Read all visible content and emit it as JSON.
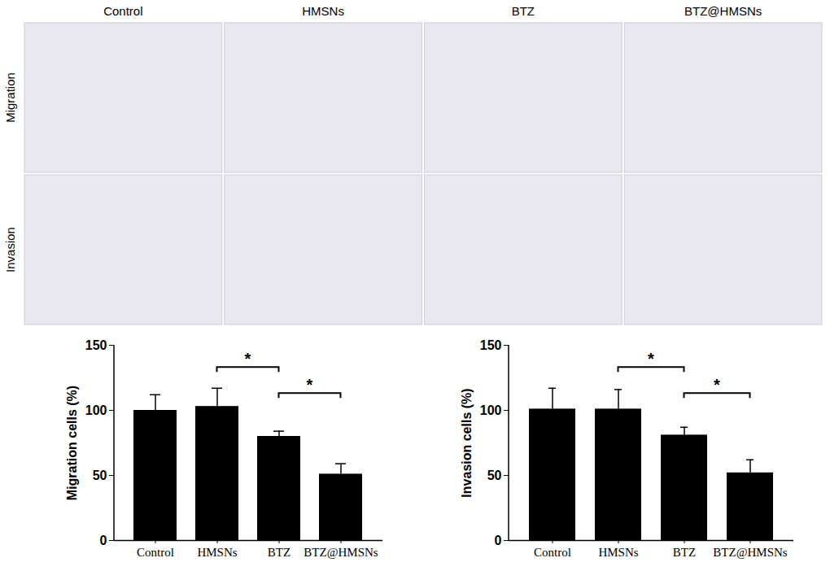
{
  "micrograph_panels": {
    "columns": [
      "Control",
      "HMSNs",
      "BTZ",
      "BTZ@HMSNs"
    ],
    "rows": [
      "Migration",
      "Invasion"
    ]
  },
  "chart_data": [
    {
      "type": "bar",
      "ylabel": "Migration cells (%)",
      "categories": [
        "Control",
        "HMSNs",
        "BTZ",
        "BTZ@HMSNs"
      ],
      "values": [
        100,
        103,
        80,
        51
      ],
      "errors": [
        12,
        14,
        4,
        8
      ],
      "color": "#000000",
      "ylim": [
        0,
        150
      ],
      "yticks": [
        0,
        50,
        100,
        150
      ],
      "annotations": [
        {
          "from": "HMSNs",
          "to": "BTZ",
          "y": 133,
          "text": "*"
        },
        {
          "from": "BTZ",
          "to": "BTZ@HMSNs",
          "y": 113,
          "text": "*"
        }
      ]
    },
    {
      "type": "bar",
      "ylabel": "Invasion cells (%)",
      "categories": [
        "Control",
        "HMSNs",
        "BTZ",
        "BTZ@HMSNs"
      ],
      "values": [
        101,
        101,
        81,
        52
      ],
      "errors": [
        16,
        15,
        6,
        10
      ],
      "color": "#000000",
      "ylim": [
        0,
        150
      ],
      "yticks": [
        0,
        50,
        100,
        150
      ],
      "annotations": [
        {
          "from": "HMSNs",
          "to": "BTZ",
          "y": 133,
          "text": "*"
        },
        {
          "from": "BTZ",
          "to": "BTZ@HMSNs",
          "y": 113,
          "text": "*"
        }
      ]
    }
  ]
}
